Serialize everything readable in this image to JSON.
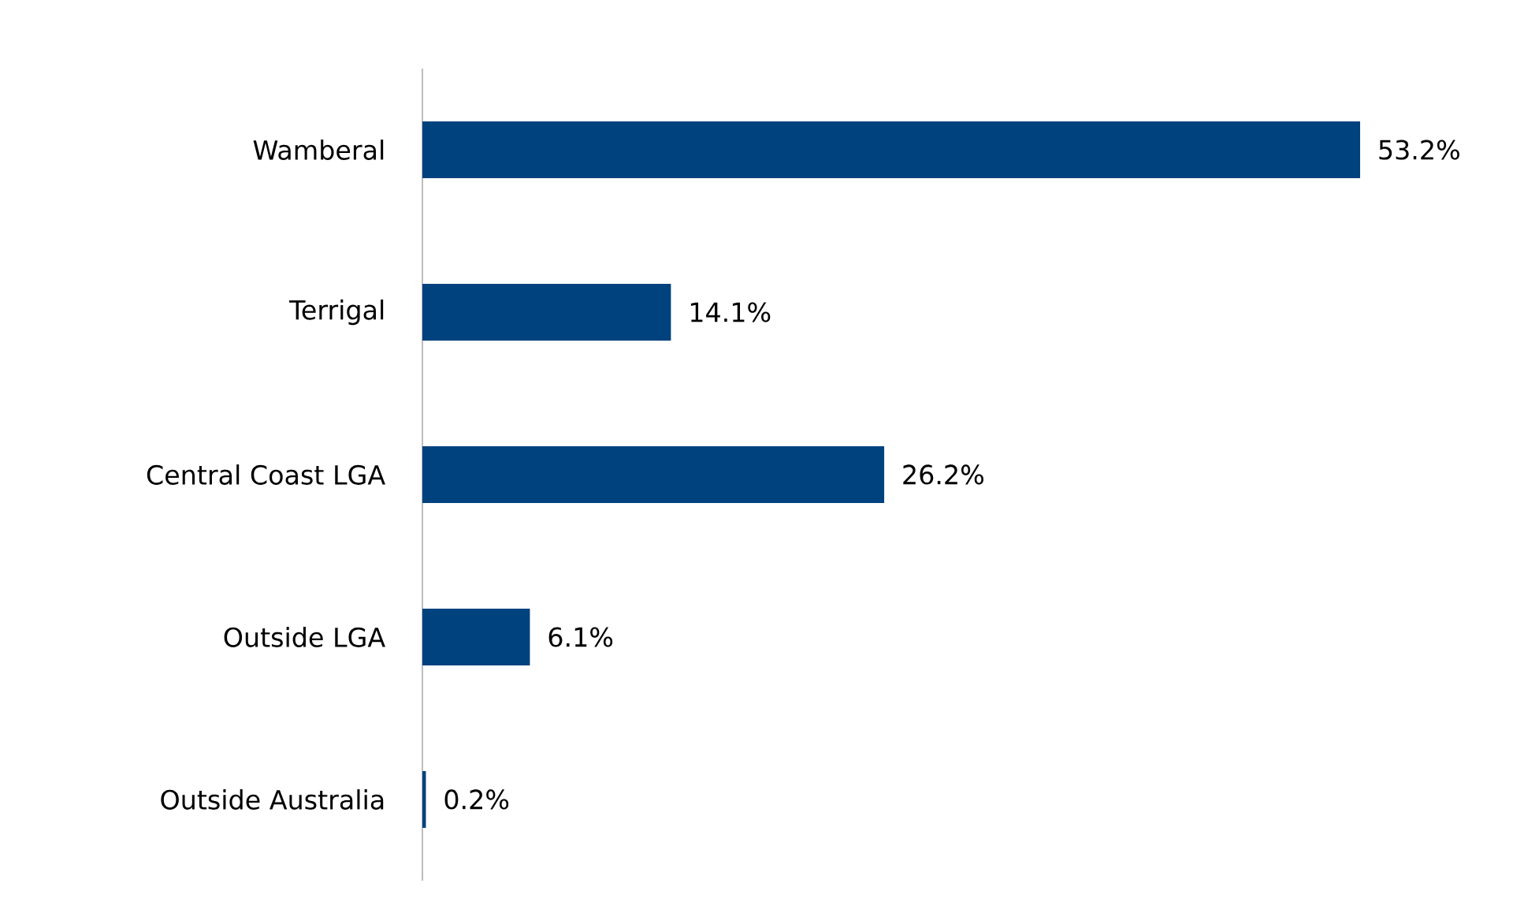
{
  "chart_data": {
    "type": "bar",
    "orientation": "horizontal",
    "categories": [
      "Wamberal",
      "Terrigal",
      "Central Coast LGA",
      "Outside LGA",
      "Outside Australia"
    ],
    "values": [
      53.2,
      14.1,
      26.2,
      6.1,
      0.2
    ],
    "value_labels": [
      "53.2%",
      "14.1%",
      "26.2%",
      "6.1%",
      "0.2%"
    ],
    "color": "#00427e"
  }
}
